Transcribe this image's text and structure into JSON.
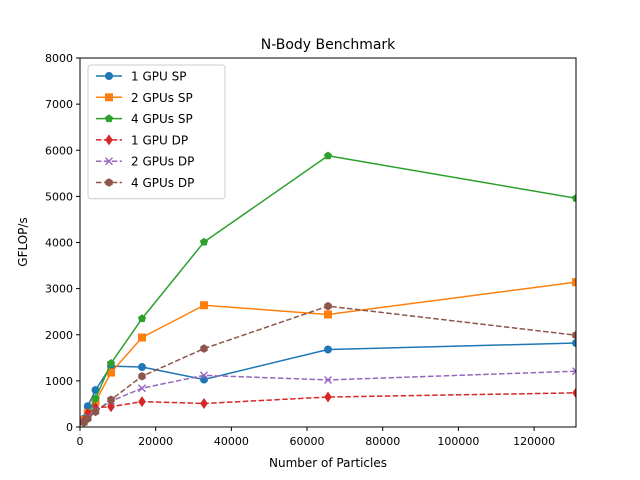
{
  "chart_data": {
    "type": "line",
    "title": "N-Body Benchmark",
    "xlabel": "Number of Particles",
    "ylabel": "GFLOP/s",
    "xlim": [
      0,
      131072
    ],
    "ylim": [
      0,
      8000
    ],
    "xticks": [
      0,
      20000,
      40000,
      60000,
      80000,
      100000,
      120000
    ],
    "yticks": [
      0,
      1000,
      2000,
      3000,
      4000,
      5000,
      6000,
      7000,
      8000
    ],
    "grid": false,
    "legend_position": "upper-left",
    "series": [
      {
        "name": "1 GPU SP",
        "color": "#1f77b4",
        "linestyle": "solid",
        "marker": "circle",
        "x": [
          1024,
          2048,
          4096,
          8192,
          16384,
          32768,
          65536,
          131072
        ],
        "y": [
          180,
          450,
          800,
          1320,
          1300,
          1030,
          1680,
          1820
        ]
      },
      {
        "name": "2 GPUs SP",
        "color": "#ff7f0e",
        "linestyle": "solid",
        "marker": "square",
        "x": [
          1024,
          2048,
          4096,
          8192,
          16384,
          32768,
          65536,
          131072
        ],
        "y": [
          150,
          300,
          550,
          1180,
          1940,
          2640,
          2440,
          3140
        ]
      },
      {
        "name": "4 GPUs SP",
        "color": "#2ca02c",
        "linestyle": "solid",
        "marker": "pentagon",
        "x": [
          1024,
          2048,
          4096,
          8192,
          16384,
          32768,
          65536,
          131072
        ],
        "y": [
          120,
          250,
          620,
          1380,
          2350,
          4010,
          5880,
          4960
        ]
      },
      {
        "name": "1 GPU DP",
        "color": "#d62728",
        "linestyle": "dashed",
        "marker": "diamond",
        "x": [
          1024,
          2048,
          4096,
          8192,
          16384,
          32768,
          65536,
          131072
        ],
        "y": [
          130,
          290,
          420,
          440,
          550,
          510,
          650,
          740
        ]
      },
      {
        "name": "2 GPUs DP",
        "color": "#9467bd",
        "linestyle": "dashed",
        "marker": "x",
        "x": [
          1024,
          2048,
          4096,
          8192,
          16384,
          32768,
          65536,
          131072
        ],
        "y": [
          110,
          220,
          360,
          560,
          840,
          1120,
          1020,
          1210
        ]
      },
      {
        "name": "4 GPUs DP",
        "color": "#8c564b",
        "linestyle": "dashed",
        "marker": "hexagon",
        "x": [
          1024,
          2048,
          4096,
          8192,
          16384,
          32768,
          65536,
          131072
        ],
        "y": [
          100,
          180,
          330,
          590,
          1100,
          1700,
          2620,
          1990
        ]
      }
    ]
  }
}
